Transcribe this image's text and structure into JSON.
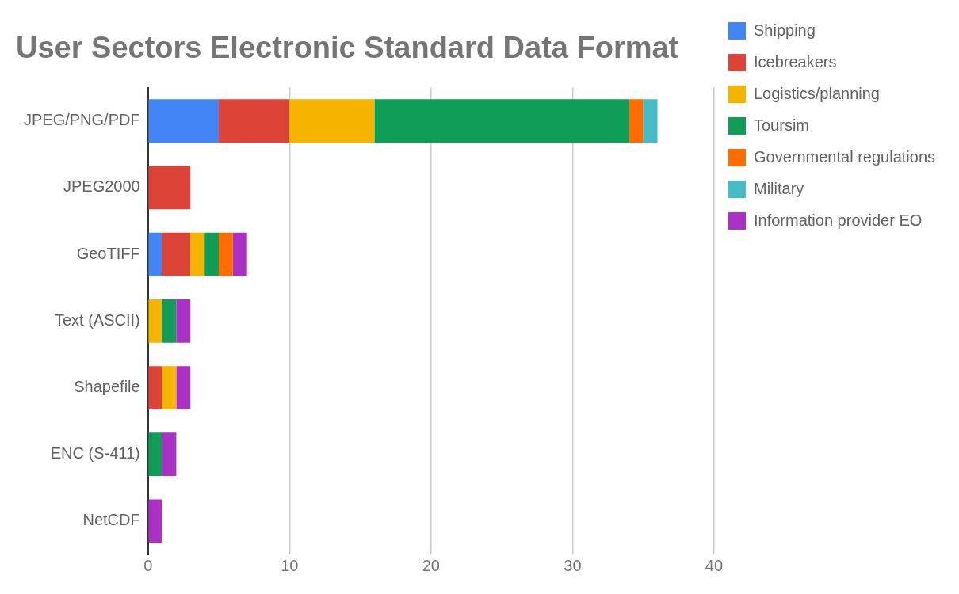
{
  "chart_data": {
    "type": "bar",
    "orientation": "horizontal",
    "stacked": true,
    "title": "User Sectors Electronic Standard Data Format",
    "categories": [
      "JPEG/PNG/PDF",
      "JPEG2000",
      "GeoTIFF",
      "Text (ASCII)",
      "Shapefile",
      "ENC (S-411)",
      "NetCDF"
    ],
    "series": [
      {
        "name": "Shipping",
        "color": "#4285f4",
        "values": [
          5,
          0,
          1,
          0,
          0,
          0,
          0
        ]
      },
      {
        "name": "Icebreakers",
        "color": "#db4437",
        "values": [
          5,
          3,
          2,
          0,
          1,
          0,
          0
        ]
      },
      {
        "name": "Logistics/planning",
        "color": "#f4b400",
        "values": [
          6,
          0,
          1,
          1,
          1,
          0,
          0
        ]
      },
      {
        "name": "Toursim",
        "color": "#0f9d58",
        "values": [
          18,
          0,
          1,
          1,
          0,
          1,
          0
        ]
      },
      {
        "name": "Governmental regulations",
        "color": "#ff6d00",
        "values": [
          1,
          0,
          1,
          0,
          0,
          0,
          0
        ]
      },
      {
        "name": "Military",
        "color": "#46bdc6",
        "values": [
          1,
          0,
          0,
          0,
          0,
          0,
          0
        ]
      },
      {
        "name": "Information provider EO",
        "color": "#ab30c4",
        "values": [
          0,
          0,
          1,
          1,
          1,
          1,
          1
        ]
      }
    ],
    "xlim": [
      0,
      40
    ],
    "xticks": [
      0,
      10,
      20,
      30,
      40
    ],
    "grid": "x",
    "legend": "right"
  }
}
